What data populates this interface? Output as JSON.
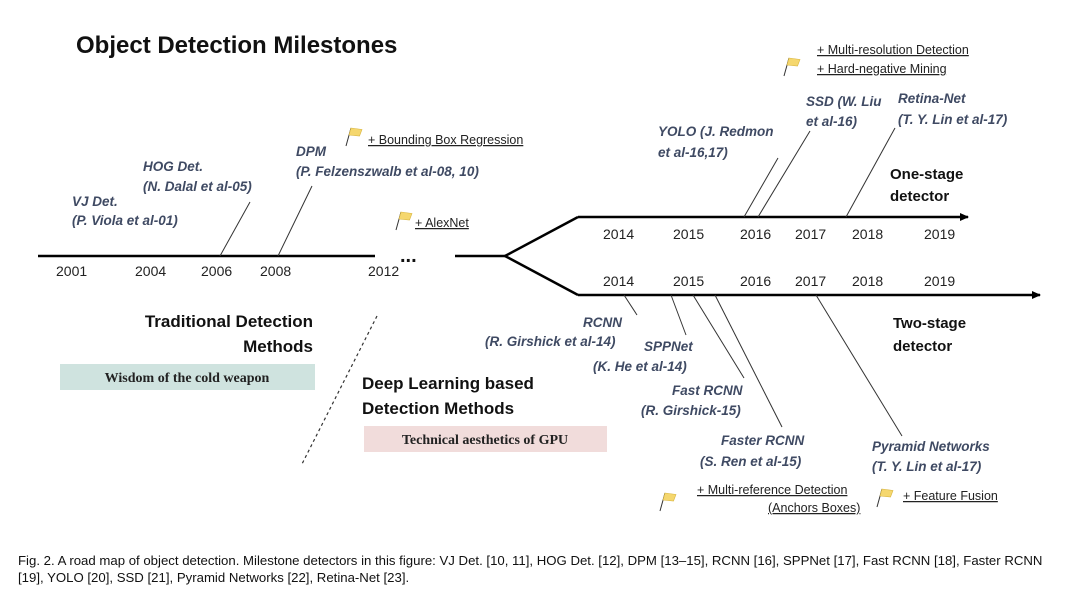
{
  "title": "Object Detection Milestones",
  "main_timeline": {
    "years": [
      "2001",
      "2004",
      "2006",
      "2008",
      "2012"
    ],
    "ellipsis": "..."
  },
  "one_stage": {
    "label_line1": "One-stage",
    "label_line2": "detector",
    "years": [
      "2014",
      "2015",
      "2016",
      "2017",
      "2018",
      "2019"
    ],
    "detectors": [
      {
        "name": "YOLO (J. Redmon",
        "cite": "et al-16,17)"
      },
      {
        "name": "SSD (W. Liu",
        "cite": "et al-16)"
      },
      {
        "name": "Retina-Net",
        "cite": "(T. Y. Lin et al-17)"
      }
    ],
    "notes": [
      "+ Multi-resolution Detection",
      "+ Hard-negative Mining"
    ]
  },
  "two_stage": {
    "label_line1": "Two-stage",
    "label_line2": "detector",
    "years": [
      "2014",
      "2015",
      "2016",
      "2017",
      "2018",
      "2019"
    ],
    "detectors": [
      {
        "name": "RCNN",
        "cite": "(R. Girshick et al-14)"
      },
      {
        "name": "SPPNet",
        "cite": "(K. He et al-14)"
      },
      {
        "name": "Fast RCNN",
        "cite": "(R. Girshick-15)"
      },
      {
        "name": "Faster RCNN",
        "cite": "(S. Ren et al-15)"
      },
      {
        "name": "Pyramid Networks",
        "cite": "(T. Y. Lin et al-17)"
      }
    ],
    "notes": {
      "multi_reference": "+ Multi-reference Detection",
      "anchors": "(Anchors Boxes)",
      "feature_fusion": "+ Feature Fusion"
    }
  },
  "traditional": {
    "detectors": [
      {
        "name": "VJ Det.",
        "cite": "(P. Viola et al-01)"
      },
      {
        "name": "HOG Det.",
        "cite": "(N. Dalal et al-05)"
      },
      {
        "name": "DPM",
        "cite": "(P. Felzenszwalb et al-08, 10)"
      }
    ],
    "notes": {
      "bbox": "+ Bounding Box Regression",
      "alexnet": "+ AlexNet"
    }
  },
  "eras": {
    "traditional_line1": "Traditional Detection",
    "traditional_line2": "Methods",
    "traditional_tag": "Wisdom of the cold weapon",
    "dl_line1": "Deep Learning based",
    "dl_line2": "Detection Methods",
    "dl_tag": "Technical aesthetics of GPU"
  },
  "colors": {
    "detector_text": "#3f4a63",
    "flag": "#f5d76e",
    "traditional_tag_bg": "#cfe3df",
    "dl_tag_bg": "#f1dcdb"
  },
  "caption": "Fig. 2.  A road map of object detection. Milestone detectors in this figure: VJ Det. [10, 11], HOG Det. [12], DPM [13–15], RCNN [16], SPPNet [17], Fast RCNN [18], Faster RCNN [19], YOLO [20], SSD [21], Pyramid Networks [22], Retina-Net [23]."
}
